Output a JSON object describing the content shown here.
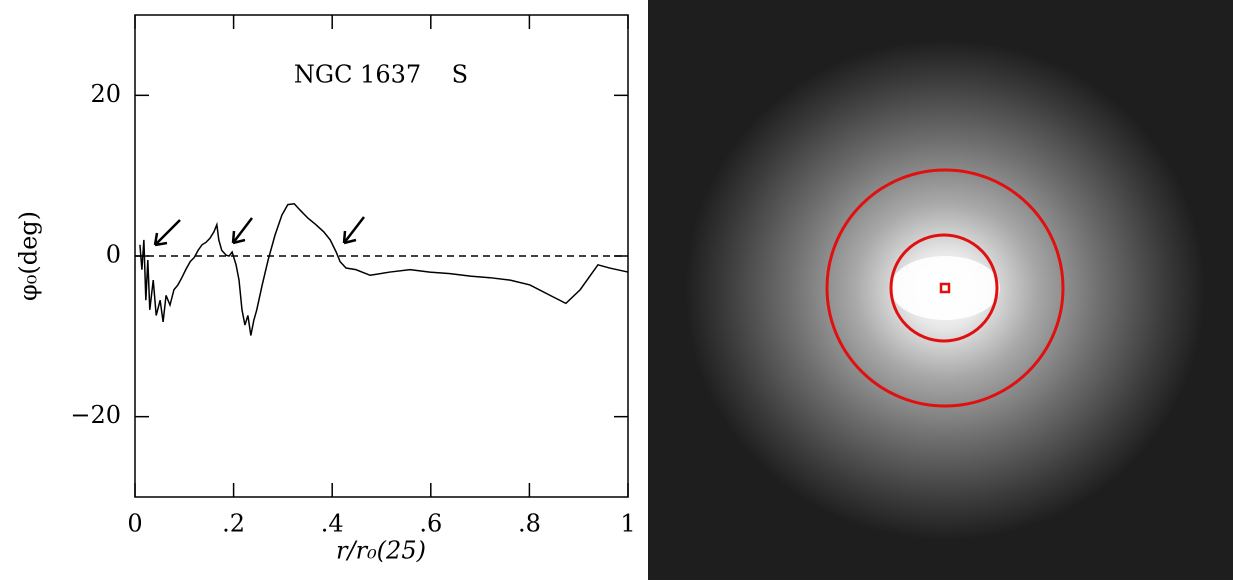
{
  "chart_data": {
    "type": "line",
    "title": "NGC 1637    S",
    "x_label": "r/r₀(25)",
    "y_label": "φ₀(deg)",
    "xlim": [
      0,
      1
    ],
    "ylim": [
      -30,
      30
    ],
    "xticks": [
      0,
      {
        "value": 0.2,
        "label": ".2"
      },
      {
        "value": 0.4,
        "label": ".4"
      },
      {
        "value": 0.6,
        "label": ".6"
      },
      {
        "value": 0.8,
        "label": ".8"
      },
      1
    ],
    "yticks": [
      {
        "value": -20,
        "label": "−20"
      },
      0,
      20
    ],
    "reference_line": 0,
    "series": [
      {
        "color": "#000000",
        "x": [
          0.01,
          0.014,
          0.018,
          0.022,
          0.026,
          0.03,
          0.037,
          0.043,
          0.051,
          0.057,
          0.063,
          0.071,
          0.079,
          0.087,
          0.095,
          0.103,
          0.112,
          0.12,
          0.128,
          0.136,
          0.144,
          0.152,
          0.16,
          0.166,
          0.17,
          0.176,
          0.185,
          0.191,
          0.197,
          0.205,
          0.211,
          0.217,
          0.223,
          0.229,
          0.235,
          0.241,
          0.247,
          0.258,
          0.27,
          0.284,
          0.298,
          0.31,
          0.323,
          0.335,
          0.351,
          0.367,
          0.383,
          0.396,
          0.408,
          0.416,
          0.428,
          0.448,
          0.477,
          0.517,
          0.558,
          0.598,
          0.639,
          0.68,
          0.72,
          0.761,
          0.801,
          0.842,
          0.874,
          0.903,
          0.939,
          0.963,
          1.0
        ],
        "values": [
          1.4,
          -1.7,
          2,
          -5.5,
          -0.5,
          -6.7,
          -3,
          -7.4,
          -5.5,
          -8.2,
          -4.9,
          -6.1,
          -4.2,
          -3.6,
          -2.7,
          -1.7,
          -0.7,
          -0.2,
          0.7,
          1.4,
          1.7,
          2.2,
          3,
          3.9,
          2,
          0.7,
          0.1,
          0,
          0.5,
          -1.1,
          -3,
          -6.7,
          -8.6,
          -7.4,
          -9.9,
          -8,
          -6.7,
          -3.6,
          -0.5,
          2.6,
          5.1,
          6.4,
          6.5,
          5.7,
          4.7,
          3.9,
          3,
          2,
          0.5,
          -0.7,
          -1.5,
          -1.7,
          -2.4,
          -2,
          -1.7,
          -2,
          -2.2,
          -2.5,
          -2.7,
          -3,
          -3.6,
          -4.9,
          -5.9,
          -4.2,
          -1.1,
          -1.5,
          -2
        ]
      }
    ]
  }
}
